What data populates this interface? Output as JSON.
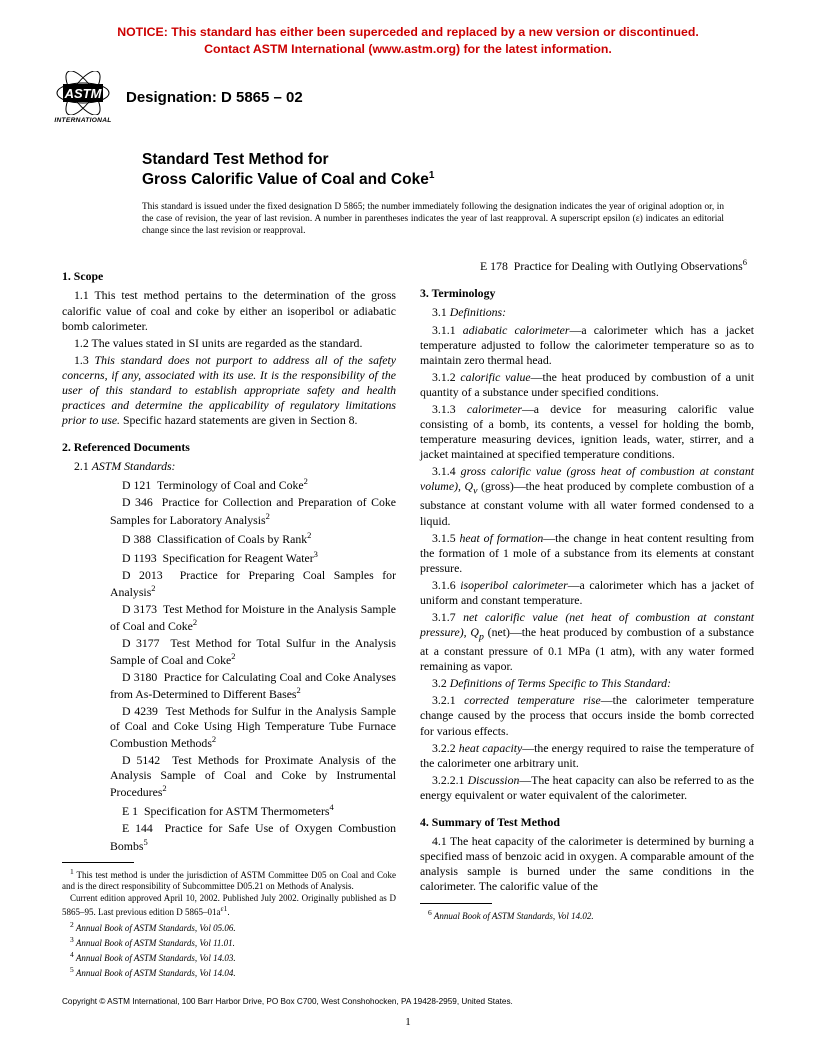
{
  "notice": {
    "line1": "NOTICE: This standard has either been superceded and replaced by a new version or discontinued.",
    "line2": "Contact ASTM International (www.astm.org) for the latest information.",
    "color": "#cc0000"
  },
  "logo": {
    "label": "INTERNATIONAL"
  },
  "designation": "Designation: D 5865 – 02",
  "title": {
    "line1": "Standard Test Method for",
    "line2": "Gross Calorific Value of Coal and Coke",
    "super": "1"
  },
  "issuance": "This standard is issued under the fixed designation D 5865; the number immediately following the designation indicates the year of original adoption or, in the case of revision, the year of last revision. A number in parentheses indicates the year of last reapproval. A superscript epsilon (ε) indicates an editorial change since the last revision or reapproval.",
  "s1": {
    "head": "1. Scope",
    "p11": "1.1 This test method pertains to the determination of the gross calorific value of coal and coke by either an isoperibol or adiabatic bomb calorimeter.",
    "p12": "1.2 The values stated in SI units are regarded as the standard.",
    "p13a": "1.3 ",
    "p13b": "This standard does not purport to address all of the safety concerns, if any, associated with its use. It is the responsibility of the user of this standard to establish appropriate safety and health practices and determine the applicability of regulatory limitations prior to use.",
    "p13c": " Specific hazard statements are given in Section 8."
  },
  "s2": {
    "head": "2. Referenced Documents",
    "sub": "2.1 ASTM Standards:",
    "refs": [
      {
        "n": "D 121",
        "t": "Terminology of Coal and Coke",
        "s": "2"
      },
      {
        "n": "D 346",
        "t": "Practice for Collection and Preparation of Coke Samples for Laboratory Analysis",
        "s": "2"
      },
      {
        "n": "D 388",
        "t": "Classification of Coals by Rank",
        "s": "2"
      },
      {
        "n": "D 1193",
        "t": "Specification for Reagent Water",
        "s": "3"
      },
      {
        "n": "D 2013",
        "t": "Practice for Preparing Coal Samples for Analysis",
        "s": "2"
      },
      {
        "n": "D 3173",
        "t": "Test Method for Moisture in the Analysis Sample of Coal and Coke",
        "s": "2"
      },
      {
        "n": "D 3177",
        "t": "Test Method for Total Sulfur in the Analysis Sample of Coal and Coke",
        "s": "2"
      },
      {
        "n": "D 3180",
        "t": "Practice for Calculating Coal and Coke Analyses from As-Determined to Different Bases",
        "s": "2"
      },
      {
        "n": "D 4239",
        "t": "Test Methods for Sulfur in the Analysis Sample of Coal and Coke Using High Temperature Tube Furnace Combustion Methods",
        "s": "2"
      },
      {
        "n": "D 5142",
        "t": "Test Methods for Proximate Analysis of the Analysis Sample of Coal and Coke by Instrumental Procedures",
        "s": "2"
      },
      {
        "n": "E 1",
        "t": "Specification for ASTM Thermometers",
        "s": "4"
      },
      {
        "n": "E 144",
        "t": "Practice for Safe Use of Oxygen Combustion Bombs",
        "s": "5"
      }
    ],
    "e178n": "E 178",
    "e178t": "Practice for Dealing with Outlying Observations",
    "e178s": "6"
  },
  "s3": {
    "head": "3. Terminology",
    "p31": "3.1 Definitions:",
    "p311a": "3.1.1 ",
    "p311b": "adiabatic calorimeter",
    "p311c": "—a calorimeter which has a jacket temperature adjusted to follow the calorimeter temperature so as to maintain zero thermal head.",
    "p312a": "3.1.2 ",
    "p312b": "calorific value",
    "p312c": "—the heat produced by combustion of a unit quantity of a substance under specified conditions.",
    "p313a": "3.1.3 ",
    "p313b": "calorimeter",
    "p313c": "—a device for measuring calorific value consisting of a bomb, its contents, a vessel for holding the bomb, temperature measuring devices, ignition leads, water, stirrer, and a jacket maintained at specified temperature conditions.",
    "p314a": "3.1.4 ",
    "p314b": "gross calorific value (gross heat of combustion at constant volume), Q",
    "p314sub": "v",
    "p314c": " (gross)—the heat produced by complete combustion of a substance at constant volume with all water formed condensed to a liquid.",
    "p315a": "3.1.5 ",
    "p315b": "heat of formation",
    "p315c": "—the change in heat content resulting from the formation of 1 mole of a substance from its elements at constant pressure.",
    "p316a": "3.1.6 ",
    "p316b": "isoperibol calorimeter",
    "p316c": "—a calorimeter which has a jacket of uniform and constant temperature.",
    "p317a": "3.1.7 ",
    "p317b": "net calorific value (net heat of combustion at constant pressure), Q",
    "p317sub": "p",
    "p317c": " (net)—the heat produced by combustion of a substance at a constant pressure of 0.1 MPa (1 atm), with any water formed remaining as vapor.",
    "p32": "3.2 Definitions of Terms Specific to This Standard:",
    "p321a": "3.2.1 ",
    "p321b": "corrected temperature rise",
    "p321c": "—the calorimeter temperature change caused by the process that occurs inside the bomb corrected for various effects.",
    "p322a": "3.2.2 ",
    "p322b": "heat capacity",
    "p322c": "—the energy required to raise the temperature of the calorimeter one arbitrary unit.",
    "p3221a": "3.2.2.1 ",
    "p3221b": "Discussion",
    "p3221c": "—The heat capacity can also be referred to as the energy equivalent or water equivalent of the calorimeter."
  },
  "s4": {
    "head": "4. Summary of Test Method",
    "p41": "4.1 The heat capacity of the calorimeter is determined by burning a specified mass of benzoic acid in oxygen. A comparable amount of the analysis sample is burned under the same conditions in the calorimeter. The calorific value of the"
  },
  "footL": {
    "f1a": "1",
    "f1": " This test method is under the jurisdiction of ASTM Committee D05 on Coal and Coke and is the direct responsibility of Subcommittee D05.21 on Methods of Analysis.",
    "f1b": "Current edition approved April 10, 2002. Published July 2002. Originally published as D 5865–95. Last previous edition D 5865–01a",
    "f1bsup": "ε1",
    "f1bend": ".",
    "f2": " Annual Book of ASTM Standards, Vol 05.06.",
    "f3": " Annual Book of ASTM Standards, Vol 11.01.",
    "f4": " Annual Book of ASTM Standards, Vol 14.03.",
    "f5": " Annual Book of ASTM Standards, Vol 14.04."
  },
  "footR": {
    "f6": " Annual Book of ASTM Standards, Vol 14.02."
  },
  "copyright": "Copyright © ASTM International, 100 Barr Harbor Drive, PO Box C700, West Conshohocken, PA 19428-2959, United States.",
  "pageNumber": "1"
}
